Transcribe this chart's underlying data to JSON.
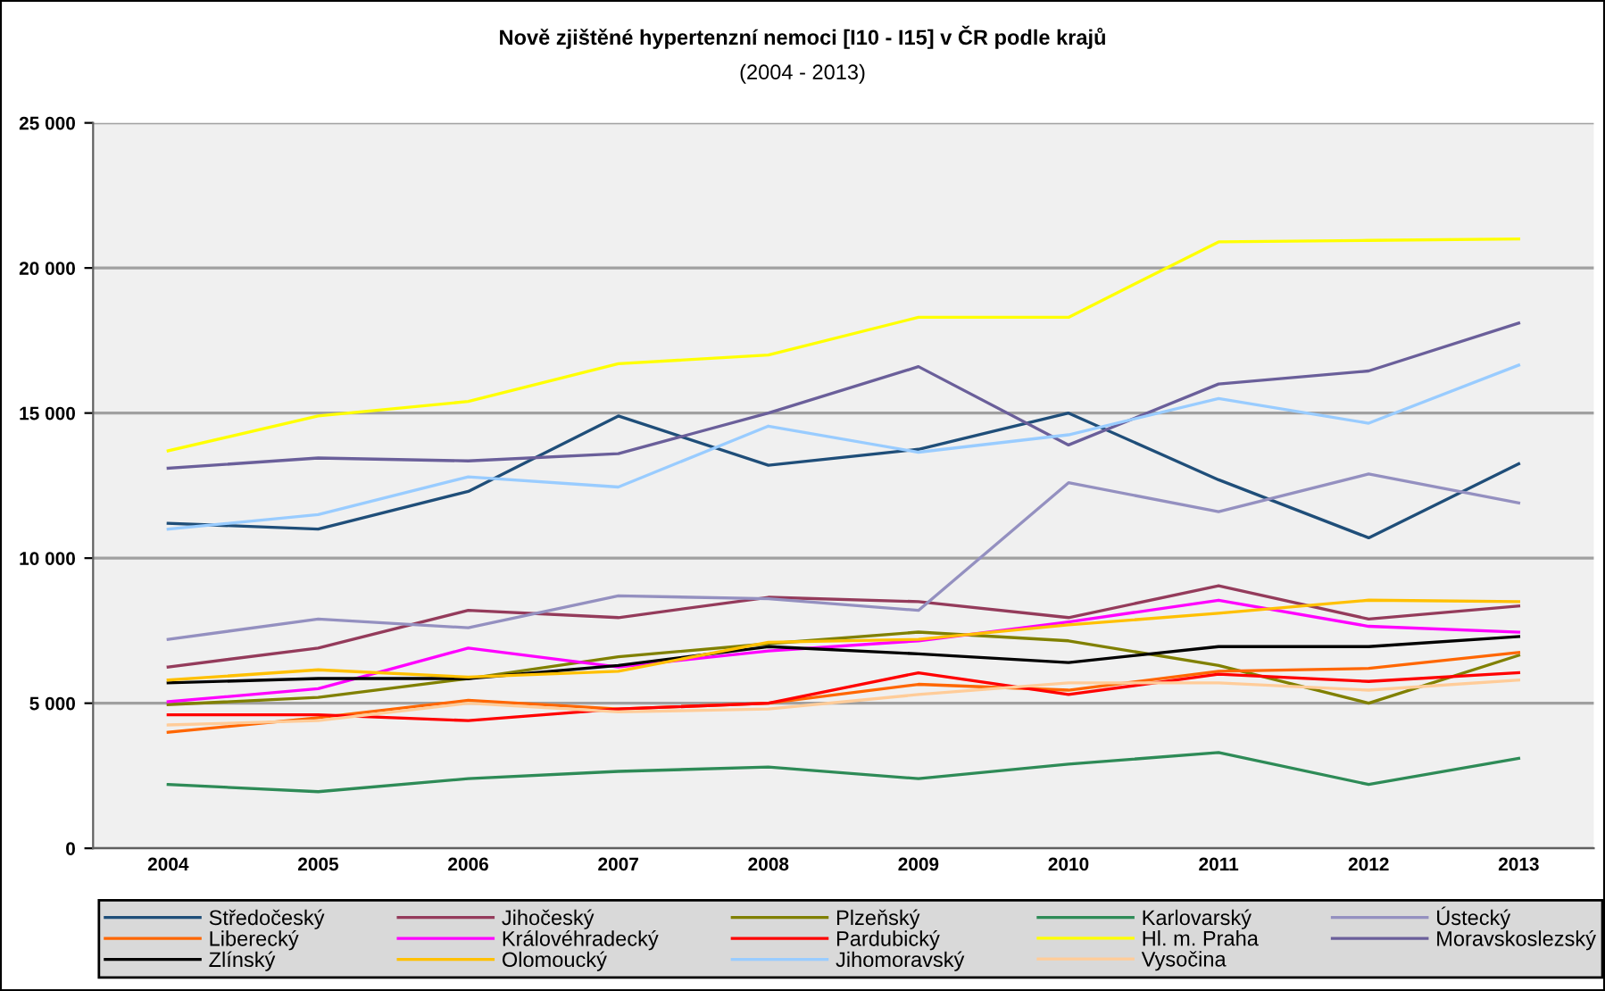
{
  "chart_data": {
    "type": "line",
    "title": "Nově zjištěné hypertenzní nemoci [I10 - I15] v ČR podle krajů",
    "subtitle": "(2004 - 2013)",
    "categories": [
      "2004",
      "2005",
      "2006",
      "2007",
      "2008",
      "2009",
      "2010",
      "2011",
      "2012",
      "2013"
    ],
    "ylim": [
      0,
      25000
    ],
    "yticks": [
      {
        "value": 0,
        "label": "0"
      },
      {
        "value": 5000,
        "label": "5 000"
      },
      {
        "value": 10000,
        "label": "10 000"
      },
      {
        "value": 15000,
        "label": "15 000"
      },
      {
        "value": 20000,
        "label": "20 000"
      },
      {
        "value": 25000,
        "label": "25 000"
      }
    ],
    "grid": "y",
    "legend": "bottom",
    "marker": "none",
    "line_style": "solid",
    "series": [
      {
        "name": "Středočeský",
        "color": "#1f4e79",
        "values": [
          11200,
          11000,
          12300,
          14900,
          13200,
          13750,
          15000,
          12700,
          10700,
          13250
        ]
      },
      {
        "name": "Jihočeský",
        "color": "#943b5b",
        "values": [
          6250,
          6900,
          8200,
          7950,
          8650,
          8500,
          7950,
          9050,
          7900,
          8350
        ]
      },
      {
        "name": "Plzeňský",
        "color": "#808000",
        "values": [
          4950,
          5200,
          5850,
          6600,
          7050,
          7450,
          7150,
          6300,
          5000,
          6650
        ]
      },
      {
        "name": "Karlovarský",
        "color": "#2e8b57",
        "values": [
          2200,
          1950,
          2400,
          2650,
          2800,
          2400,
          2900,
          3300,
          2200,
          3100
        ]
      },
      {
        "name": "Ústecký",
        "color": "#9490c0",
        "values": [
          7200,
          7900,
          7600,
          8700,
          8600,
          8200,
          12600,
          11600,
          12900,
          11900
        ]
      },
      {
        "name": "Liberecký",
        "color": "#ff6600",
        "values": [
          4000,
          4500,
          5100,
          4800,
          5000,
          5650,
          5450,
          6100,
          6200,
          6750
        ]
      },
      {
        "name": "Královéhradecký",
        "color": "#ff00ff",
        "values": [
          5050,
          5500,
          6900,
          6250,
          6800,
          7150,
          7800,
          8550,
          7650,
          7450
        ]
      },
      {
        "name": "Pardubický",
        "color": "#ff0000",
        "values": [
          4600,
          4600,
          4400,
          4800,
          5000,
          6050,
          5300,
          6000,
          5750,
          6050
        ]
      },
      {
        "name": "Hl. m. Praha",
        "color": "#ffff00",
        "values": [
          13700,
          14900,
          15400,
          16700,
          17000,
          18300,
          18300,
          20900,
          20950,
          21000
        ]
      },
      {
        "name": "Moravskoslezský",
        "color": "#6a5f9a",
        "values": [
          13100,
          13450,
          13350,
          13600,
          15000,
          16600,
          13900,
          16000,
          16450,
          18100
        ]
      },
      {
        "name": "Zlínský",
        "color": "#000000",
        "values": [
          5700,
          5850,
          5850,
          6300,
          6950,
          6700,
          6400,
          6950,
          6950,
          7300
        ]
      },
      {
        "name": "Olomoucký",
        "color": "#ffc000",
        "values": [
          5800,
          6150,
          5900,
          6100,
          7100,
          7200,
          7700,
          8100,
          8550,
          8500
        ]
      },
      {
        "name": "Jihomoravský",
        "color": "#99ccff",
        "values": [
          11000,
          11500,
          12800,
          12450,
          14550,
          13650,
          14250,
          15500,
          14650,
          16650
        ]
      },
      {
        "name": "Vysočina",
        "color": "#ffcc99",
        "values": [
          4250,
          4400,
          5000,
          4700,
          4800,
          5300,
          5700,
          5700,
          5450,
          5800
        ]
      }
    ]
  }
}
